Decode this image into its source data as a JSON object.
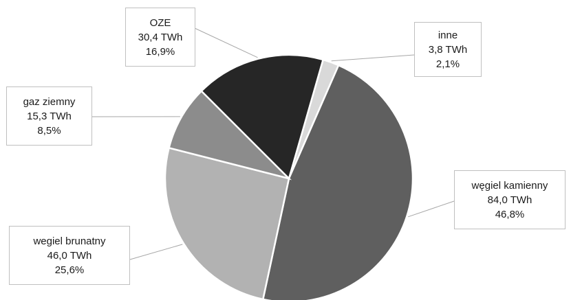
{
  "chart_data": {
    "type": "pie",
    "title": "",
    "start_angle_deg": 16,
    "direction": "clockwise",
    "slices": [
      {
        "category": "inne",
        "value_twh": "3,8 TWh",
        "value": 3.8,
        "percent": "2,1%",
        "color": "#d9d9d9"
      },
      {
        "category": "węgiel kamienny",
        "value_twh": "84,0 TWh",
        "value": 84.0,
        "percent": "46,8%",
        "color": "#5f5f5f"
      },
      {
        "category": "wegiel brunatny",
        "value_twh": "46,0 TWh",
        "value": 46.0,
        "percent": "25,6%",
        "color": "#b2b2b2"
      },
      {
        "category": "gaz ziemny",
        "value_twh": "15,3 TWh",
        "value": 15.3,
        "percent": "8,5%",
        "color": "#8c8c8c"
      },
      {
        "category": "OZE",
        "value_twh": "30,4 TWh",
        "value": 30.4,
        "percent": "16,9%",
        "color": "#262626"
      }
    ]
  }
}
